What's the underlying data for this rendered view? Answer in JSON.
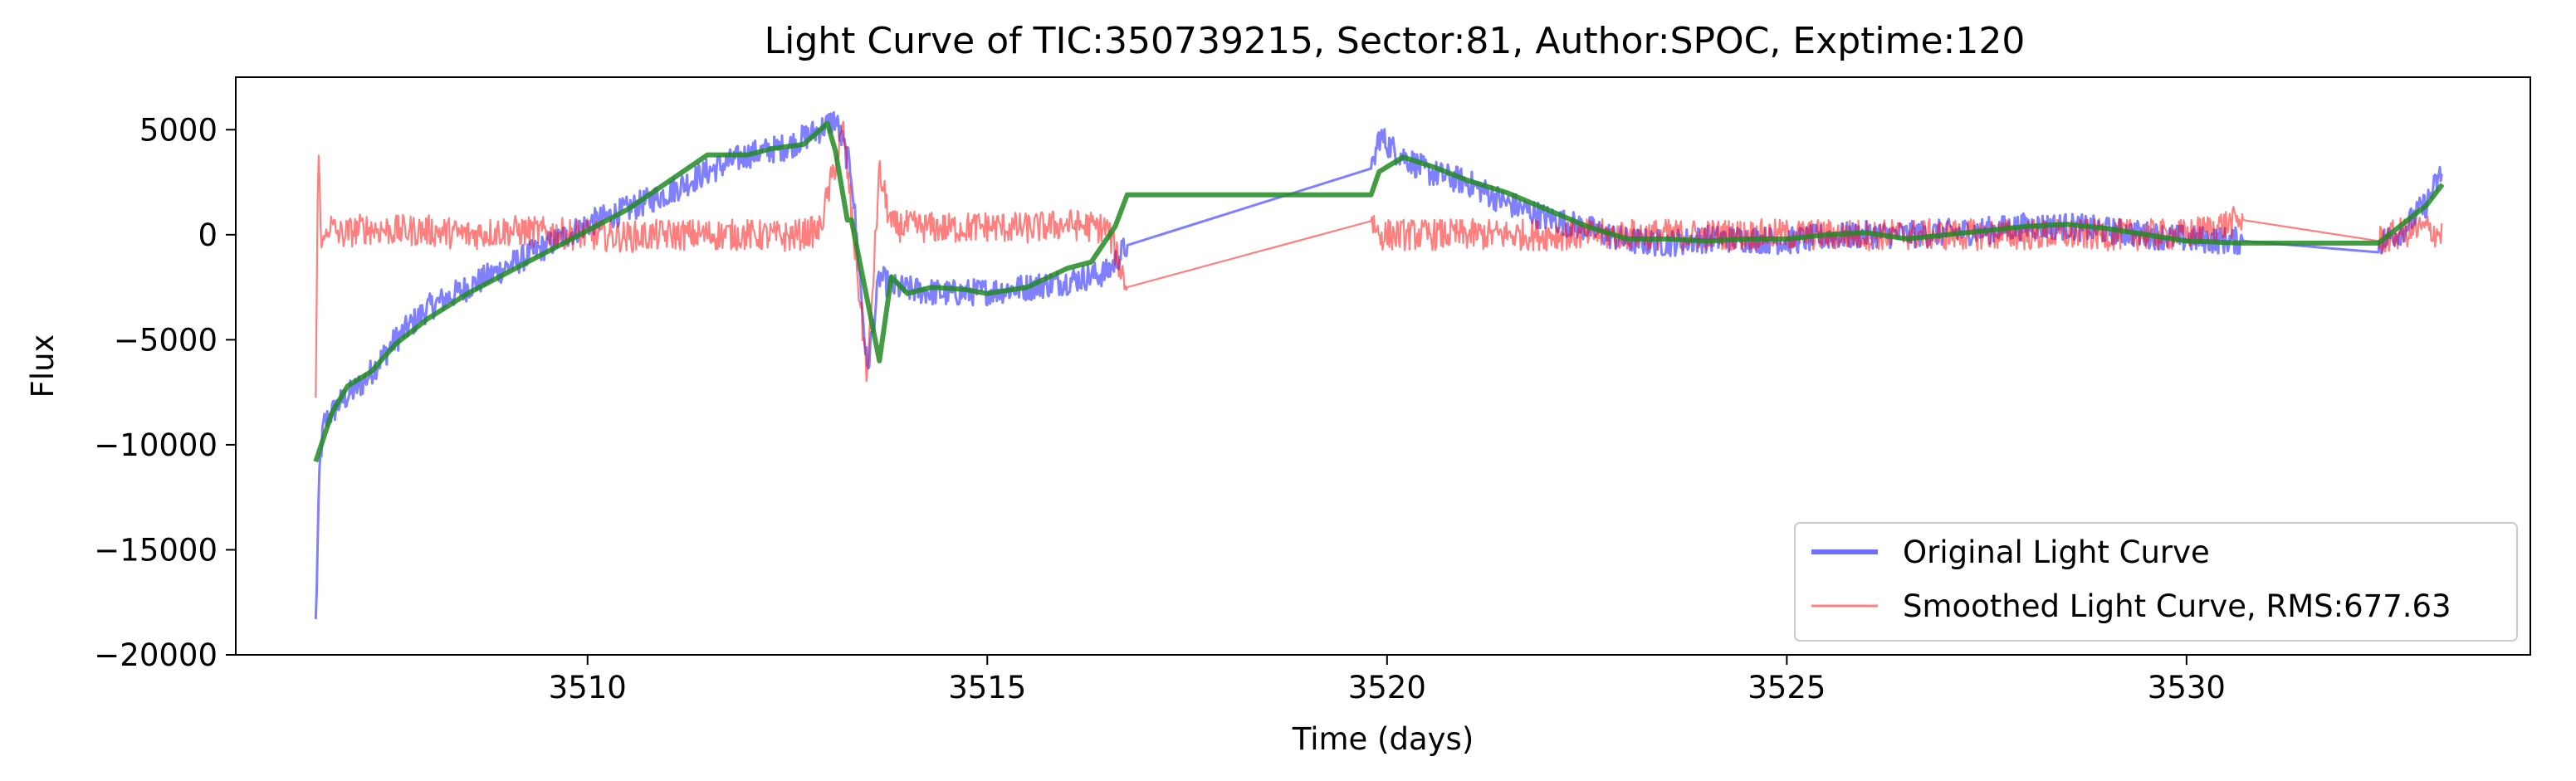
{
  "chart_data": {
    "type": "line",
    "title": "Light Curve of TIC:350739215, Sector:81, Author:SPOC, Exptime:120",
    "xlabel": "Time (days)",
    "ylabel": "Flux",
    "xlim": [
      3505.6,
      3534.3
    ],
    "ylim": [
      -20000,
      7500
    ],
    "xticks": [
      3510,
      3515,
      3520,
      3525,
      3530
    ],
    "xtick_labels": [
      "3510",
      "3515",
      "3520",
      "3525",
      "3530"
    ],
    "yticks": [
      -20000,
      -15000,
      -10000,
      -5000,
      0,
      5000
    ],
    "ytick_labels": [
      "−20000",
      "−15000",
      "−10000",
      "−5000",
      "0",
      "5000"
    ],
    "grid": false,
    "legend_position": "lower-right",
    "colors": {
      "original": "#0000ff",
      "smoothed_lc": "#ff0000",
      "trend": "#228b22"
    },
    "series": [
      {
        "name": "Original Light Curve",
        "color": "#0000ff",
        "style": "thick-noisy",
        "x": [
          3506.6,
          3506.65,
          3506.7,
          3506.9,
          3507.2,
          3507.6,
          3508.0,
          3508.5,
          3509.0,
          3509.5,
          3510.0,
          3510.5,
          3511.0,
          3511.5,
          3512.0,
          3512.5,
          3512.9,
          3513.1,
          3513.3,
          3513.5,
          3513.65,
          3513.8,
          3514.0,
          3514.5,
          3515.0,
          3515.5,
          3516.0,
          3516.5,
          3516.75,
          3519.8,
          3519.9,
          3520.1,
          3520.5,
          3521.0,
          3521.5,
          3522.0,
          3522.5,
          3523.0,
          3523.5,
          3524.0,
          3524.5,
          3525.0,
          3525.5,
          3526.0,
          3526.5,
          3527.0,
          3527.5,
          3528.0,
          3528.5,
          3529.0,
          3529.5,
          3530.0,
          3530.7,
          3532.4,
          3532.7,
          3533.0,
          3533.2
        ],
        "y": [
          -18500,
          -11000,
          -9000,
          -8000,
          -7000,
          -5000,
          -3500,
          -2500,
          -1500,
          -500,
          500,
          1200,
          2000,
          3000,
          3800,
          4200,
          5000,
          5500,
          3000,
          -6500,
          -2000,
          -2500,
          -2600,
          -2800,
          -2700,
          -2500,
          -2200,
          -1800,
          -500,
          2800,
          4700,
          4000,
          3000,
          2500,
          1500,
          800,
          300,
          -300,
          -400,
          -200,
          -200,
          -300,
          -100,
          0,
          0,
          100,
          200,
          400,
          400,
          200,
          0,
          -200,
          -300,
          -400,
          200,
          1500,
          3000
        ]
      },
      {
        "name": "Smoothed Light Curve, RMS:677.63",
        "color": "#ff0000",
        "style": "thin-noisy",
        "x": [
          3506.6,
          3506.63,
          3506.68,
          3506.75,
          3506.9,
          3507.2,
          3507.6,
          3508.0,
          3508.5,
          3509.0,
          3509.5,
          3510.0,
          3510.5,
          3511.0,
          3511.5,
          3512.0,
          3512.5,
          3512.9,
          3513.2,
          3513.5,
          3513.65,
          3513.8,
          3514.0,
          3514.5,
          3515.0,
          3515.5,
          3516.0,
          3516.5,
          3516.75,
          3519.8,
          3519.9,
          3520.1,
          3520.5,
          3521.0,
          3522.0,
          3523.0,
          3524.0,
          3525.0,
          3526.0,
          3527.0,
          3528.0,
          3529.0,
          3530.0,
          3530.7,
          3532.4,
          3532.7,
          3533.0,
          3533.2
        ],
        "y": [
          -7800,
          4000,
          -800,
          500,
          0,
          300,
          200,
          200,
          0,
          200,
          100,
          0,
          -100,
          0,
          0,
          0,
          -100,
          200,
          5000,
          -6800,
          3000,
          400,
          400,
          300,
          400,
          300,
          500,
          300,
          -2500,
          800,
          0,
          0,
          0,
          0,
          0,
          0,
          0,
          0,
          0,
          0,
          0,
          0,
          0,
          700,
          -300,
          100,
          300,
          0
        ]
      },
      {
        "name": "",
        "color": "#228b22",
        "style": "trend",
        "x": [
          3506.6,
          3506.8,
          3507.0,
          3507.3,
          3507.6,
          3508.0,
          3508.5,
          3509.0,
          3509.5,
          3510.0,
          3510.5,
          3511.0,
          3511.5,
          3512.0,
          3512.3,
          3512.7,
          3513.0,
          3513.1,
          3513.25,
          3513.3,
          3513.65,
          3513.8,
          3514.0,
          3514.3,
          3514.7,
          3515.0,
          3515.5,
          3516.0,
          3516.3,
          3516.6,
          3516.75,
          3519.8,
          3519.9,
          3520.2,
          3520.6,
          3521.0,
          3521.5,
          3522.0,
          3522.5,
          3523.0,
          3523.5,
          3524.0,
          3524.5,
          3525.0,
          3525.5,
          3526.0,
          3526.5,
          3527.0,
          3527.5,
          3528.0,
          3528.5,
          3529.0,
          3529.5,
          3530.0,
          3530.7,
          3532.4,
          3532.7,
          3533.0,
          3533.2
        ],
        "y": [
          -10800,
          -8500,
          -7200,
          -6500,
          -5200,
          -4000,
          -2800,
          -1800,
          -800,
          200,
          1200,
          2500,
          3800,
          3800,
          4100,
          4300,
          5300,
          4000,
          700,
          700,
          -6000,
          -2000,
          -2800,
          -2500,
          -2600,
          -2800,
          -2500,
          -1600,
          -1300,
          400,
          1900,
          1900,
          3000,
          3700,
          3200,
          2600,
          2000,
          1200,
          400,
          -200,
          -200,
          -300,
          -200,
          -200,
          0,
          100,
          -200,
          0,
          200,
          400,
          500,
          300,
          0,
          -300,
          -400,
          -400,
          500,
          1400,
          2400
        ]
      }
    ],
    "legend": [
      {
        "label": "Original Light Curve",
        "color": "#0000ff"
      },
      {
        "label": "Smoothed Light Curve, RMS:677.63",
        "color": "#ff0000"
      }
    ]
  }
}
